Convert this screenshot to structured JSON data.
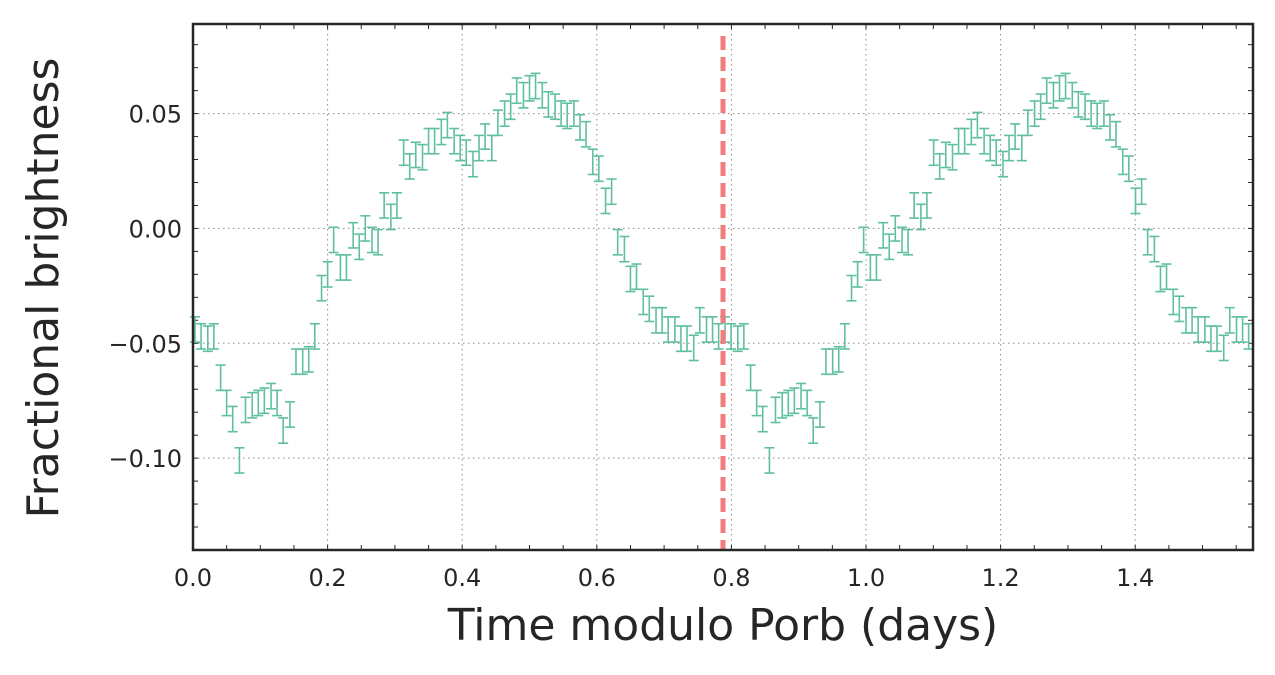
{
  "chart_data": {
    "type": "scatter",
    "xlabel": "Time modulo Porb (days)",
    "ylabel": "Fractional brightness",
    "xlim": [
      0.0,
      1.575
    ],
    "ylim": [
      -0.14,
      0.089
    ],
    "x_ticks": [
      0.0,
      0.2,
      0.4,
      0.6,
      0.8,
      1.0,
      1.2,
      1.4
    ],
    "x_tick_labels": [
      "0.0",
      "0.2",
      "0.4",
      "0.6",
      "0.8",
      "1.0",
      "1.2",
      "1.4"
    ],
    "y_ticks": [
      0.05,
      0.0,
      -0.05,
      -0.1
    ],
    "y_tick_labels": [
      "0.05",
      "0.00",
      "−0.05",
      "−0.10"
    ],
    "grid": true,
    "vline_x": 0.7875,
    "colors": {
      "points": "#5fbf9f",
      "vline": "#f27b7b",
      "frame": "#262626",
      "grid": "#8c8c8c"
    },
    "period": 0.7875,
    "series": [
      {
        "errorbar": 0.0055,
        "x": [
          0.003,
          0.012,
          0.022,
          0.031,
          0.041,
          0.05,
          0.059,
          0.069,
          0.078,
          0.088,
          0.097,
          0.106,
          0.116,
          0.125,
          0.134,
          0.144,
          0.153,
          0.163,
          0.172,
          0.181,
          0.191,
          0.2,
          0.209,
          0.219,
          0.228,
          0.238,
          0.247,
          0.256,
          0.266,
          0.275,
          0.284,
          0.294,
          0.303,
          0.313,
          0.322,
          0.331,
          0.341,
          0.35,
          0.359,
          0.369,
          0.378,
          0.388,
          0.397,
          0.406,
          0.416,
          0.425,
          0.434,
          0.444,
          0.453,
          0.463,
          0.472,
          0.481,
          0.491,
          0.5,
          0.509,
          0.519,
          0.528,
          0.538,
          0.547,
          0.556,
          0.566,
          0.575,
          0.584,
          0.594,
          0.603,
          0.613,
          0.622,
          0.631,
          0.641,
          0.65,
          0.659,
          0.669,
          0.678,
          0.688,
          0.697,
          0.706,
          0.716,
          0.725,
          0.734,
          0.744,
          0.753,
          0.763,
          0.772,
          0.781
        ],
        "y": [
          -0.044,
          -0.047,
          -0.048,
          -0.047,
          -0.065,
          -0.076,
          -0.083,
          -0.101,
          -0.079,
          -0.077,
          -0.076,
          -0.075,
          -0.073,
          -0.076,
          -0.088,
          -0.081,
          -0.058,
          -0.058,
          -0.057,
          -0.047,
          -0.026,
          -0.02,
          -0.005,
          -0.017,
          -0.017,
          -0.003,
          -0.008,
          0.0,
          -0.005,
          -0.006,
          0.01,
          0.005,
          0.01,
          0.033,
          0.027,
          0.032,
          0.031,
          0.038,
          0.038,
          0.042,
          0.045,
          0.038,
          0.035,
          0.033,
          0.028,
          0.035,
          0.04,
          0.035,
          0.046,
          0.05,
          0.053,
          0.06,
          0.058,
          0.061,
          0.062,
          0.058,
          0.054,
          0.053,
          0.05,
          0.049,
          0.05,
          0.044,
          0.041,
          0.029,
          0.026,
          0.012,
          0.016,
          -0.006,
          -0.009,
          -0.022,
          -0.021,
          -0.032,
          -0.035,
          -0.04,
          -0.04,
          -0.044,
          -0.044,
          -0.048,
          -0.048,
          -0.052,
          -0.04,
          -0.044,
          -0.044,
          -0.047
        ]
      }
    ]
  }
}
